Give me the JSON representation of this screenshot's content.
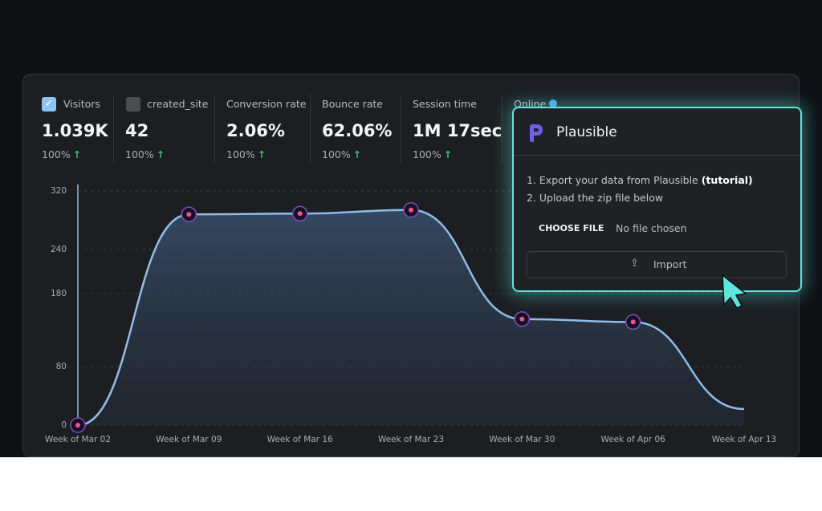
{
  "metrics": [
    {
      "label": "Visitors",
      "value": "1.039K",
      "change": "100%"
    },
    {
      "label": "created_site",
      "value": "42",
      "change": "100%"
    },
    {
      "label": "Conversion rate",
      "value": "2.06%",
      "change": "100%"
    },
    {
      "label": "Bounce rate",
      "value": "62.06%",
      "change": "100%"
    },
    {
      "label": "Session time",
      "value": "1M 17sec",
      "change": "100%"
    },
    {
      "label": "Online"
    }
  ],
  "chart_data": {
    "type": "line",
    "categories": [
      "Week of Mar 02",
      "Week of Mar 09",
      "Week of Mar 16",
      "Week of Mar 23",
      "Week of Mar 30",
      "Week of Apr 06",
      "Week of Apr 13"
    ],
    "values": [
      0,
      288,
      289,
      294,
      145,
      141,
      22
    ],
    "ylim": [
      0,
      320
    ],
    "yticks": [
      0,
      80,
      180,
      240,
      320
    ],
    "grid": true,
    "color": "#8fbde8"
  },
  "import_dialog": {
    "title": "Plausible",
    "step1": "1. Export your data from Plausible",
    "tutorial_link": "(tutorial)",
    "step2": "2. Upload the zip file below",
    "choose_file": "CHOOSE FILE",
    "file_status": "No file chosen",
    "import_button": "Import"
  }
}
